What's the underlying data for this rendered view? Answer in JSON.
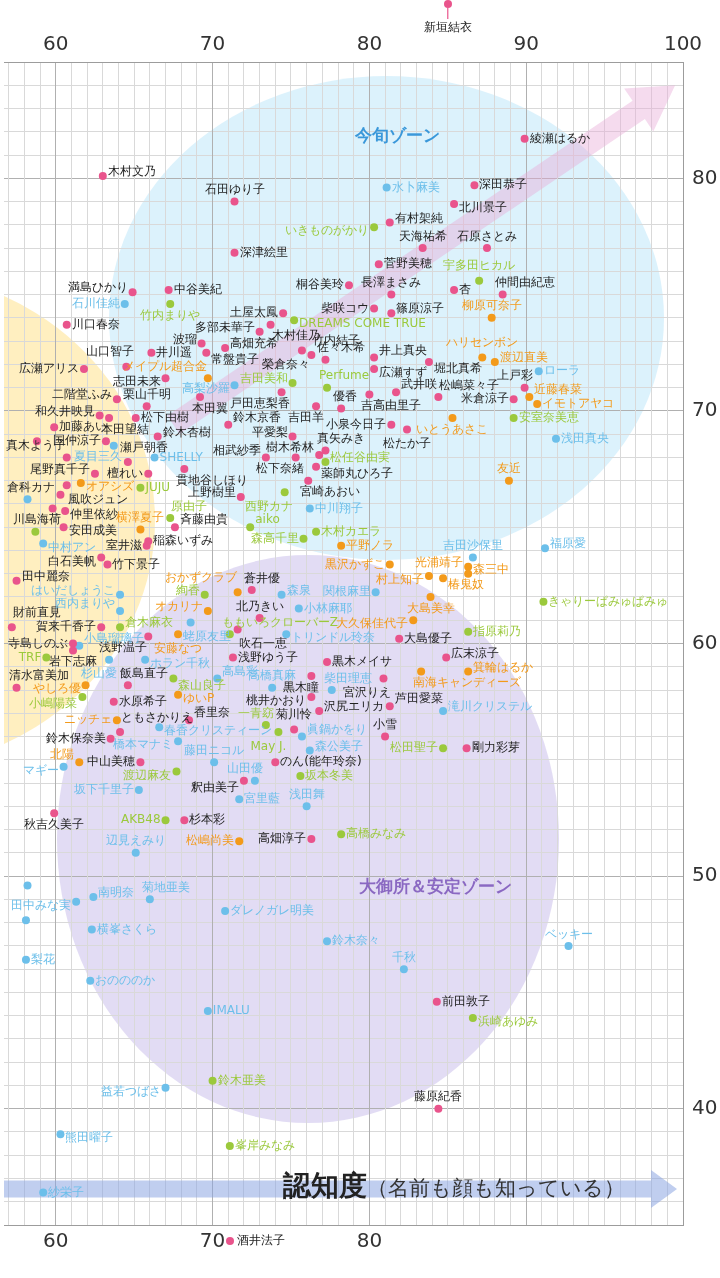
{
  "chart_data": {
    "type": "scatter",
    "xlabel": "認知度（名前も顔も知っている）",
    "marker": "circle",
    "grid": true,
    "xlim": [
      56.7,
      100
    ],
    "x2lim": [
      56.7,
      100
    ],
    "ylim": [
      35,
      85
    ],
    "xticks": [
      {
        "value": 57,
        "label": null
      },
      {
        "value": 58,
        "label": null
      },
      {
        "value": 59,
        "label": null
      },
      60,
      {
        "value": 61,
        "label": null
      },
      {
        "value": 62,
        "label": null
      },
      {
        "value": 63,
        "label": null
      },
      {
        "value": 64,
        "label": null
      },
      {
        "value": 65,
        "label": null
      },
      {
        "value": 66,
        "label": null
      },
      {
        "value": 67,
        "label": null
      },
      {
        "value": 68,
        "label": null
      },
      {
        "value": 69,
        "label": null
      },
      70,
      {
        "value": 71,
        "label": null
      },
      {
        "value": 72,
        "label": null
      },
      {
        "value": 73,
        "label": null
      },
      {
        "value": 74,
        "label": null
      },
      {
        "value": 75,
        "label": null
      },
      {
        "value": 76,
        "label": null
      },
      {
        "value": 77,
        "label": null
      },
      {
        "value": 78,
        "label": null
      },
      {
        "value": 79,
        "label": null
      },
      80,
      {
        "value": 81,
        "label": null
      },
      {
        "value": 82,
        "label": null
      },
      {
        "value": 83,
        "label": null
      },
      {
        "value": 84,
        "label": null
      },
      {
        "value": 85,
        "label": null
      },
      {
        "value": 86,
        "label": null
      },
      {
        "value": 87,
        "label": null
      },
      {
        "value": 88,
        "label": null
      },
      {
        "value": 89,
        "label": null
      },
      {
        "value": 90,
        "label": null
      },
      {
        "value": 91,
        "label": null
      },
      {
        "value": 92,
        "label": null
      },
      {
        "value": 93,
        "label": null
      },
      {
        "value": 94,
        "label": null
      },
      {
        "value": 95,
        "label": null
      },
      {
        "value": 96,
        "label": null
      },
      {
        "value": 97,
        "label": null
      },
      {
        "value": 98,
        "label": null
      },
      {
        "value": 99,
        "label": null
      },
      {
        "value": 100,
        "label": null
      }
    ],
    "x2ticks": [
      {
        "value": 57,
        "label": null
      },
      {
        "value": 58,
        "label": null
      },
      {
        "value": 59,
        "label": null
      },
      60,
      {
        "value": 61,
        "label": null
      },
      {
        "value": 62,
        "label": null
      },
      {
        "value": 63,
        "label": null
      },
      {
        "value": 64,
        "label": null
      },
      {
        "value": 65,
        "label": null
      },
      {
        "value": 66,
        "label": null
      },
      {
        "value": 67,
        "label": null
      },
      {
        "value": 68,
        "label": null
      },
      {
        "value": 69,
        "label": null
      },
      70,
      {
        "value": 71,
        "label": null
      },
      {
        "value": 72,
        "label": null
      },
      {
        "value": 73,
        "label": null
      },
      {
        "value": 74,
        "label": null
      },
      {
        "value": 75,
        "label": null
      },
      {
        "value": 76,
        "label": null
      },
      {
        "value": 77,
        "label": null
      },
      {
        "value": 78,
        "label": null
      },
      {
        "value": 79,
        "label": null
      },
      80,
      {
        "value": 81,
        "label": null
      },
      {
        "value": 82,
        "label": null
      },
      {
        "value": 83,
        "label": null
      },
      {
        "value": 84,
        "label": null
      },
      {
        "value": 85,
        "label": null
      },
      {
        "value": 86,
        "label": null
      },
      {
        "value": 87,
        "label": null
      },
      {
        "value": 88,
        "label": null
      },
      {
        "value": 89,
        "label": null
      },
      90,
      {
        "value": 91,
        "label": null
      },
      {
        "value": 92,
        "label": null
      },
      {
        "value": 93,
        "label": null
      },
      {
        "value": 94,
        "label": null
      },
      {
        "value": 95,
        "label": null
      },
      {
        "value": 96,
        "label": null
      },
      {
        "value": 97,
        "label": null
      },
      {
        "value": 98,
        "label": null
      },
      {
        "value": 99,
        "label": null
      },
      100
    ],
    "yticks": [
      {
        "value": 35,
        "label": null
      },
      {
        "value": 36,
        "label": null
      },
      {
        "value": 37,
        "label": null
      },
      {
        "value": 38,
        "label": null
      },
      {
        "value": 39,
        "label": null
      },
      40,
      {
        "value": 41,
        "label": null
      },
      {
        "value": 42,
        "label": null
      },
      {
        "value": 43,
        "label": null
      },
      {
        "value": 44,
        "label": null
      },
      {
        "value": 45,
        "label": null
      },
      {
        "value": 46,
        "label": null
      },
      {
        "value": 47,
        "label": null
      },
      {
        "value": 48,
        "label": null
      },
      {
        "value": 49,
        "label": null
      },
      50,
      {
        "value": 51,
        "label": null
      },
      {
        "value": 52,
        "label": null
      },
      {
        "value": 53,
        "label": null
      },
      {
        "value": 54,
        "label": null
      },
      {
        "value": 55,
        "label": null
      },
      {
        "value": 56,
        "label": null
      },
      {
        "value": 57,
        "label": null
      },
      {
        "value": 58,
        "label": null
      },
      {
        "value": 59,
        "label": null
      },
      60,
      {
        "value": 61,
        "label": null
      },
      {
        "value": 62,
        "label": null
      },
      {
        "value": 63,
        "label": null
      },
      {
        "value": 64,
        "label": null
      },
      {
        "value": 65,
        "label": null
      },
      {
        "value": 66,
        "label": null
      },
      {
        "value": 67,
        "label": null
      },
      {
        "value": 68,
        "label": null
      },
      {
        "value": 69,
        "label": null
      },
      70,
      {
        "value": 71,
        "label": null
      },
      {
        "value": 72,
        "label": null
      },
      {
        "value": 73,
        "label": null
      },
      {
        "value": 74,
        "label": null
      },
      {
        "value": 75,
        "label": null
      },
      {
        "value": 76,
        "label": null
      },
      {
        "value": 77,
        "label": null
      },
      {
        "value": 78,
        "label": null
      },
      {
        "value": 79,
        "label": null
      },
      80,
      {
        "value": 81,
        "label": null
      },
      {
        "value": 82,
        "label": null
      },
      {
        "value": 83,
        "label": null
      },
      {
        "value": 84,
        "label": null
      },
      {
        "value": 85,
        "label": null
      }
    ],
    "annotations": [
      "今旬ゾーン",
      "大御所＆安定ゾーン",
      "新垣結衣",
      "酒井法子"
    ],
    "series": [
      {
        "color": "#e9548c",
        "x": [
          63.0,
          71.4,
          71.4,
          64.9,
          67.2,
          60.7,
          74.5,
          73.7,
          73.0,
          69.3,
          70.8,
          66.1,
          69.6,
          64.5,
          61.8,
          67.0,
          74.4,
          69.2,
          65.8,
          63.9,
          62.8,
          63.4,
          59.9,
          65.1,
          71.0,
          76.6,
          78.2,
          80.0,
          78.7,
          80.3,
          75.7,
          76.3,
          77.2,
          89.9,
          86.7,
          85.4,
          81.3,
          83.4,
          87.5,
          80.6,
          81.4,
          85.4,
          88.5,
          81.4,
          89.9,
          89.2,
          80.3,
          83.8,
          80.3,
          84.4,
          81.7,
          81.4,
          82.4,
          75.1,
          77.2,
          73.4,
          75.3,
          76.8,
          76.6,
          76.1,
          71.8,
          68.2,
          66.5,
          63.2,
          60.7,
          64.6,
          62.5,
          65.9,
          60.7,
          60.3,
          59.8,
          60.6,
          60.5,
          65.9,
          67.6,
          65.8,
          62.9,
          63.3,
          57.5,
          57.2,
          62.9,
          61.1,
          61.1,
          57.5,
          65.9,
          72.5,
          73.0,
          71.6,
          77.3,
          71.3,
          76.3,
          64.6,
          76.3,
          76.8,
          81.3,
          81.0,
          86.2,
          80.9,
          84.9,
          81.9,
          63.7,
          64.1,
          63.5,
          68.5,
          75.2,
          74.0,
          65.4,
          72.0,
          59.9,
          68.2,
          76.3,
          84.3,
          84.4,
          58.8
        ],
        "values": [
          80.1,
          79.0,
          76.8,
          75.1,
          75.2,
          73.7,
          74.2,
          73.7,
          73.4,
          72.9,
          72.7,
          72.5,
          72.5,
          71.9,
          71.8,
          71.4,
          70.8,
          70.6,
          70.2,
          70.5,
          69.8,
          69.7,
          69.3,
          69.7,
          69.4,
          70.2,
          70.1,
          70.7,
          75.4,
          74.4,
          72.6,
          72.4,
          72.2,
          81.7,
          79.7,
          78.9,
          78.1,
          77.0,
          77.0,
          76.3,
          75.0,
          75.2,
          75.0,
          74.2,
          71.0,
          70.5,
          72.3,
          72.1,
          71.8,
          70.6,
          70.8,
          69.4,
          69.2,
          68.9,
          68.3,
          68.0,
          68.0,
          68.1,
          67.6,
          67.0,
          66.3,
          67.5,
          68.9,
          68.7,
          68.0,
          67.8,
          67.3,
          67.3,
          66.8,
          66.4,
          65.8,
          65.7,
          65.0,
          64.4,
          65.0,
          64.2,
          63.7,
          63.4,
          62.7,
          60.7,
          60.7,
          60.0,
          59.7,
          58.1,
          60.3,
          62.3,
          61.1,
          60.6,
          59.2,
          59.4,
          58.6,
          58.2,
          57.7,
          57.1,
          57.3,
          56.0,
          55.5,
          58.5,
          59.4,
          60.2,
          57.5,
          56.2,
          55.9,
          56.7,
          56.3,
          54.9,
          54.9,
          54.1,
          52.7,
          52.4,
          51.6,
          44.6,
          40.0,
          68.7
        ],
        "value_labels": [
          "木村文乃",
          "石田ゆり子",
          "深津絵里",
          "満島ひかり",
          "中谷美紀",
          "川口春奈",
          "土屋太鳳",
          "木村佳乃",
          "多部未華子",
          "波瑠",
          "高畑充希",
          "井川遥",
          "常盤貴子",
          "山口智子",
          "広瀬アリス",
          "志田未来",
          "戸田恵梨香",
          "本田翼",
          "栗山千明",
          "二階堂ふみ",
          "和久井映見",
          "本田望結",
          "加藤あい",
          "松下由樹",
          "鈴木京香",
          "吉田羊",
          "優香",
          "吉高由里子",
          "桐谷美玲",
          "柴咲コウ",
          "榮倉奈々",
          "竹内結子",
          "佐々木希",
          "綾瀬はるか",
          "深田恭子",
          "北川景子",
          "有村架純",
          "天海祐希",
          "石原さとみ",
          "菅野美穂",
          "長澤まさみ",
          "杏",
          "仲間由紀恵",
          "篠原涼子",
          "上戸彩",
          "米倉涼子",
          "井上真央",
          "堀北真希",
          "広瀬すず",
          "松嶋菜々子",
          "武井咲",
          "小泉今日子",
          "松たか子",
          "平愛梨",
          "真矢みき",
          "相武紗季",
          "松下奈緒",
          "樹木希林",
          "薬師丸ひろ子",
          "宮崎あおい",
          "上野樹里",
          "貫地谷しほり",
          "鈴木杏樹",
          "国仲涼子",
          "真木よう子",
          "瀬戸朝香",
          "尾野真千子",
          "檀れい",
          "風吹ジュン",
          "倉科カナ",
          "川島海荷",
          "仲里依紗",
          "安田成美",
          "稲森いずみ",
          "斉藤由貴",
          "室井滋",
          "白石美帆",
          "竹下景子",
          "田中麗奈",
          "財前直見",
          "賀来千香子",
          "寺島しのぶ",
          "岩下志麻",
          "清水富美加",
          "浅野温子",
          "蒼井優",
          "北乃きい",
          "吹石一恵",
          "黒木メイサ",
          "浅野ゆう子",
          "黒木瞳",
          "飯島直子",
          "桃井かおり",
          "沢尻エリカ",
          "芦田愛菜",
          "小雪",
          "剛力彩芽",
          "宮沢りえ",
          "広末涼子",
          "大島優子",
          "水原希子",
          "ともさかりえ",
          "鈴木保奈美",
          "香里奈",
          "菊川怜",
          "のん(能年玲奈)",
          "中山美穂",
          "釈由美子",
          "秋吉久美子",
          "杉本彩",
          "高畑淳子",
          "前田敦子",
          "藤原紀香",
          null
        ]
      },
      {
        "color": "#6cbfea",
        "x": [
          64.4,
          71.4,
          81.1,
          90.8,
          91.9,
          66.3,
          63.7,
          59.2,
          61.5,
          63.4,
          65.7,
          64.1,
          64.1,
          68.6,
          74.4,
          75.5,
          74.7,
          70.3,
          73.8,
          77.6,
          84.7,
          80.4,
          86.6,
          91.2,
          76.2,
          66.6,
          67.8,
          75.7,
          76.2,
          70.1,
          60.5,
          72.7,
          65.3,
          71.7,
          76.0,
          65.1,
          61.3,
          62.4,
          66.0,
          62.3,
          70.8,
          77.3,
          58.1,
          62.2,
          69.7,
          67.0,
          60.3,
          59.2,
          92.7,
          82.2,
          58.2,
          58.1,
          58.2
        ],
        "values": [
          74.6,
          71.1,
          79.6,
          71.7,
          68.8,
          68.0,
          68.5,
          64.3,
          59.9,
          59.3,
          59.3,
          62.1,
          61.4,
          60.9,
          62.1,
          61.5,
          60.4,
          58.5,
          58.1,
          58.0,
          57.1,
          62.2,
          63.7,
          64.1,
          65.8,
          56.4,
          55.8,
          56.0,
          55.4,
          54.9,
          54.7,
          54.1,
          53.7,
          53.3,
          53.0,
          51.0,
          48.9,
          49.1,
          49.0,
          47.7,
          48.5,
          47.2,
          46.4,
          45.5,
          44.2,
          40.9,
          38.9,
          36.4,
          47.0,
          46.0,
          49.6,
          48.1,
          66.2
        ],
        "value_labels": [
          "石川佳純",
          "高梨沙羅",
          "水卜麻美",
          "ローラ",
          "浅田真央",
          "SHELLY",
          "夏目三久",
          "中村アン",
          "小島瑠璃子",
          "杉山愛",
          "ホラン千秋",
          "はいだしょうこ",
          "西内まりや",
          "蛯原友里",
          "森泉",
          "小林麻耶",
          "トリンドル玲奈",
          "高島彩",
          "高橋真麻",
          "柴田理恵",
          "滝川クリステル",
          "関根麻里",
          "吉田沙保里",
          "福原愛",
          "中川翔子",
          "春香クリスティーン",
          "橋本マナミ",
          "眞鍋かをり",
          "森公美子",
          "藤田ニコル",
          "マギー",
          "山田優",
          "坂下千里子",
          "宮里藍",
          "浅田舞",
          "辺見えみり",
          "田中みな実",
          "南明奈",
          "菊地亜美",
          "横峯さくら",
          "ダレノガレ明美",
          "鈴木奈々",
          "梨花",
          "おのののか",
          "IMALU",
          "益若つばさ",
          "熊田曜子",
          "紗栄子",
          "ベッキー",
          "千秋",
          null,
          null,
          null
        ]
      },
      {
        "color": "#9bc93c",
        "x": [
          67.3,
          75.2,
          75.1,
          77.3,
          80.3,
          87.0,
          89.2,
          77.2,
          74.6,
          65.4,
          67.3,
          72.4,
          76.6,
          75.8,
          64.1,
          59.4,
          69.5,
          71.1,
          67.5,
          61.7,
          73.4,
          74.2,
          75.6,
          67.7,
          67.0,
          78.2,
          91.1,
          86.3,
          84.7,
          86.6,
          70.0,
          71.1,
          58.7
        ],
        "values": [
          74.6,
          73.9,
          71.2,
          71.0,
          77.9,
          75.6,
          69.7,
          67.8,
          66.5,
          66.7,
          65.4,
          65.0,
          64.8,
          64.5,
          60.7,
          59.4,
          62.1,
          60.4,
          58.5,
          57.7,
          56.5,
          56.2,
          54.3,
          54.5,
          52.4,
          51.8,
          61.8,
          60.5,
          55.5,
          43.9,
          41.2,
          38.4,
          64.8
        ],
        "value_labels": [
          "竹内まりや",
          "DREAMS COME TRUE",
          "吉田美和",
          "Perfume",
          "いきものがかり",
          "宇多田ヒカル",
          "安室奈美恵",
          "松任谷由実",
          "西野カナ",
          "JUJU",
          "原由子",
          "aiko",
          "木村カエラ",
          "森高千里",
          "倉木麻衣",
          "TRF",
          "絢香",
          "ももいろクローバーZ",
          "森山良子",
          "小嶋陽菜",
          "一青窈",
          "May J.",
          "坂本冬美",
          "渡辺麻友",
          "AKB48",
          "高橋みなみ",
          "きゃりーぱみゅぱみゅ",
          "指原莉乃",
          "松田聖子",
          "浜崎あゆみ",
          "鈴木亜美",
          "峯岸みなみ",
          null
        ]
      },
      {
        "color": "#f39a1a",
        "x": [
          69.7,
          87.8,
          87.2,
          88.0,
          90.2,
          90.7,
          85.3,
          88.9,
          61.6,
          65.4,
          61.9,
          71.6,
          69.7,
          67.8,
          67.8,
          63.9,
          61.5,
          71.7,
          78.2,
          81.3,
          83.8,
          84.7,
          86.3,
          86.3,
          83.9,
          82.8,
          83.3,
          86.3
        ],
        "values": [
          71.4,
          74.0,
          72.3,
          72.1,
          70.6,
          70.3,
          69.7,
          67.0,
          66.9,
          64.9,
          58.2,
          62.2,
          61.4,
          60.4,
          57.8,
          56.7,
          54.9,
          51.5,
          64.2,
          63.4,
          62.9,
          62.8,
          63.0,
          63.3,
          62.0,
          61.0,
          58.8,
          58.8
        ],
        "value_labels": [
          "メイプル超合金",
          "柳原可奈子",
          "ハリセンボン",
          "渡辺直美",
          "近藤春菜",
          "イモトアヤコ",
          "いとうあさこ",
          "友近",
          "オアシズ",
          "横澤夏子",
          "やしろ優",
          "おかずクラブ",
          "オカリナ",
          "安藤なつ",
          "ゆいP",
          "ニッチェ",
          "北陽",
          "松嶋尚美",
          "平野ノラ",
          "黒沢かずこ",
          "村上知子",
          "椿鬼奴",
          "森三中",
          "光浦靖子",
          "大島美幸",
          "大久保佳代子",
          "南海キャンディーズ",
          "箕輪はるか"
        ]
      }
    ]
  }
}
